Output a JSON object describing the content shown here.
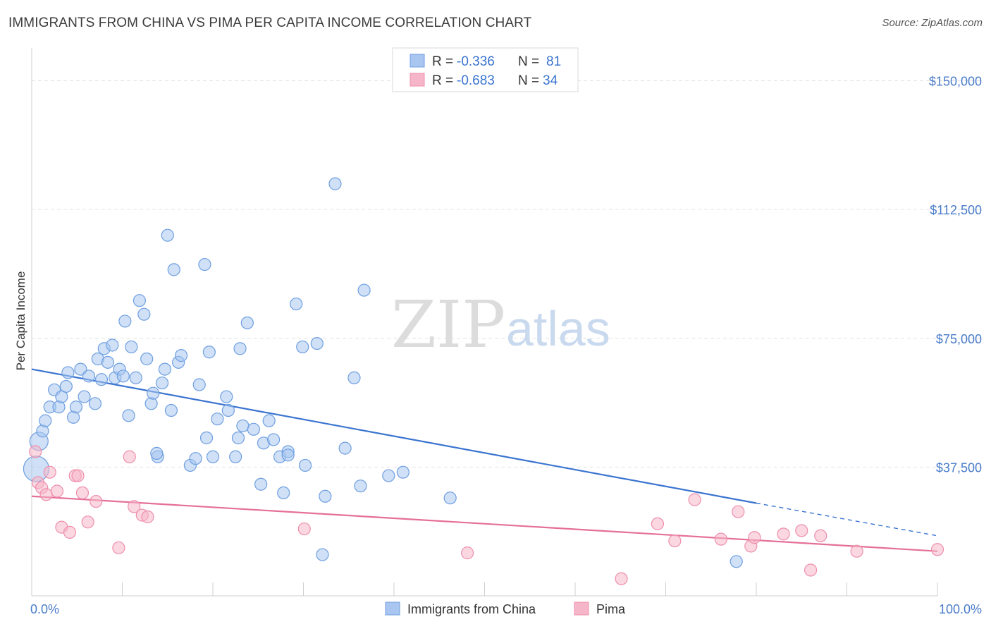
{
  "title": "IMMIGRANTS FROM CHINA VS PIMA PER CAPITA INCOME CORRELATION CHART",
  "source": "Source: ZipAtlas.com",
  "watermark": {
    "zip": "ZIP",
    "atlas": "atlas"
  },
  "legend": {
    "rows": [
      {
        "r_label": "R =",
        "r_value": "-0.336",
        "n_label": "N =",
        "n_value": "81",
        "color": "#a8c6f0"
      },
      {
        "r_label": "R =",
        "r_value": "-0.683",
        "n_label": "N =",
        "n_value": "34",
        "color": "#f6b6c9"
      }
    ]
  },
  "chart_data": {
    "type": "scatter",
    "title": "IMMIGRANTS FROM CHINA VS PIMA PER CAPITA INCOME CORRELATION CHART",
    "ylabel": "Per Capita Income",
    "xlabel": "",
    "xlim": [
      0,
      100
    ],
    "ylim": [
      0,
      157500
    ],
    "x_tick_labels": [
      "0.0%",
      "100.0%"
    ],
    "y_ticks": [
      37500,
      75000,
      112500,
      150000
    ],
    "y_tick_labels": [
      "$37,500",
      "$75,000",
      "$112,500",
      "$150,000"
    ],
    "grid": true,
    "legend_position": "top-center",
    "series": [
      {
        "name": "Immigrants from China",
        "color": "#a8c6f0",
        "stroke": "#6f9fe0",
        "trend_color": "#3a74d0",
        "trend": {
          "x0": 0,
          "y0": 66000,
          "x1": 80,
          "y1": 27000,
          "dashed_to_x": 100,
          "dashed_to_y": 17500
        },
        "points": [
          [
            0.5,
            37000
          ],
          [
            0.8,
            45000
          ],
          [
            1.2,
            48000
          ],
          [
            1.5,
            51000
          ],
          [
            2,
            55000
          ],
          [
            2.5,
            60000
          ],
          [
            3,
            55000
          ],
          [
            3.3,
            58000
          ],
          [
            3.8,
            61000
          ],
          [
            4,
            65000
          ],
          [
            4.6,
            52000
          ],
          [
            4.9,
            55000
          ],
          [
            5.4,
            66000
          ],
          [
            5.8,
            58000
          ],
          [
            6.3,
            64000
          ],
          [
            7,
            56000
          ],
          [
            7.3,
            69000
          ],
          [
            7.7,
            63000
          ],
          [
            8,
            72000
          ],
          [
            8.4,
            68000
          ],
          [
            8.9,
            73000
          ],
          [
            9.2,
            63500
          ],
          [
            9.7,
            66000
          ],
          [
            10.1,
            64000
          ],
          [
            10.3,
            80000
          ],
          [
            10.7,
            52500
          ],
          [
            11,
            72500
          ],
          [
            11.5,
            63500
          ],
          [
            11.9,
            86000
          ],
          [
            12.4,
            82000
          ],
          [
            12.7,
            69000
          ],
          [
            13.2,
            56000
          ],
          [
            13.4,
            59000
          ],
          [
            13.9,
            40500
          ],
          [
            14.4,
            62000
          ],
          [
            14.7,
            66000
          ],
          [
            15,
            105000
          ],
          [
            15.4,
            54000
          ],
          [
            15.7,
            95000
          ],
          [
            16.2,
            68000
          ],
          [
            16.5,
            70000
          ],
          [
            17.5,
            38000
          ],
          [
            18.1,
            40000
          ],
          [
            18.5,
            61500
          ],
          [
            19.1,
            96500
          ],
          [
            19.3,
            46000
          ],
          [
            19.6,
            71000
          ],
          [
            20,
            40500
          ],
          [
            20.5,
            51500
          ],
          [
            21.5,
            58000
          ],
          [
            21.7,
            54000
          ],
          [
            22.5,
            40500
          ],
          [
            22.8,
            46000
          ],
          [
            23.3,
            49500
          ],
          [
            23.8,
            79500
          ],
          [
            24.5,
            48500
          ],
          [
            25.3,
            32500
          ],
          [
            25.6,
            44500
          ],
          [
            26.2,
            51000
          ],
          [
            26.7,
            45500
          ],
          [
            27.4,
            40500
          ],
          [
            27.8,
            30000
          ],
          [
            28.3,
            42000
          ],
          [
            29.2,
            85000
          ],
          [
            29.9,
            72500
          ],
          [
            30.2,
            38000
          ],
          [
            31.5,
            73500
          ],
          [
            32.1,
            12000
          ],
          [
            32.4,
            29000
          ],
          [
            33.5,
            120000
          ],
          [
            34.6,
            43000
          ],
          [
            35.6,
            63500
          ],
          [
            36.3,
            32000
          ],
          [
            36.7,
            89000
          ],
          [
            39.4,
            35000
          ],
          [
            41,
            36000
          ],
          [
            46.2,
            28500
          ],
          [
            77.8,
            10000
          ],
          [
            28.3,
            41000
          ],
          [
            13.8,
            41500
          ],
          [
            23,
            72000
          ]
        ]
      },
      {
        "name": "Pima",
        "color": "#f6b6c9",
        "stroke": "#ee8fad",
        "trend_color": "#e56f98",
        "trend": {
          "x0": 0,
          "y0": 29000,
          "x1": 100,
          "y1": 13000
        },
        "points": [
          [
            0.4,
            42000
          ],
          [
            0.7,
            33000
          ],
          [
            1.1,
            31500
          ],
          [
            1.6,
            29500
          ],
          [
            2,
            36000
          ],
          [
            2.8,
            30500
          ],
          [
            3.3,
            20000
          ],
          [
            4.2,
            18500
          ],
          [
            4.8,
            35000
          ],
          [
            5.1,
            35000
          ],
          [
            5.6,
            30000
          ],
          [
            6.2,
            21500
          ],
          [
            7.1,
            27500
          ],
          [
            9.6,
            14000
          ],
          [
            10.8,
            40500
          ],
          [
            11.3,
            26000
          ],
          [
            12.2,
            23500
          ],
          [
            12.8,
            23000
          ],
          [
            30.1,
            19500
          ],
          [
            48.1,
            12500
          ],
          [
            65.1,
            5000
          ],
          [
            69.1,
            21000
          ],
          [
            71,
            16000
          ],
          [
            73.2,
            28000
          ],
          [
            76.1,
            16500
          ],
          [
            78,
            24500
          ],
          [
            79.4,
            14500
          ],
          [
            79.8,
            17000
          ],
          [
            83,
            18000
          ],
          [
            85,
            19000
          ],
          [
            86,
            7500
          ],
          [
            87.1,
            17500
          ],
          [
            91.1,
            13000
          ],
          [
            100,
            13500
          ]
        ]
      }
    ]
  }
}
